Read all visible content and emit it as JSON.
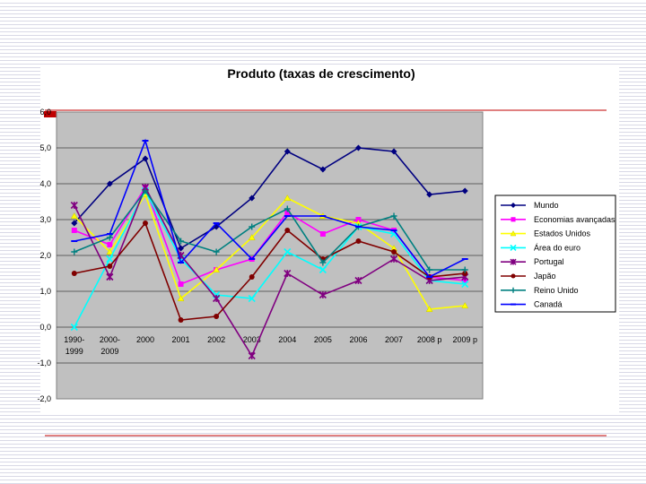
{
  "colors": {
    "plot_background": "#c0c0c0",
    "chart_background": "#ffffff",
    "rule_line": "#c00000",
    "accent_block": "#c00000"
  },
  "chart_data": {
    "type": "line",
    "title": "Produto (taxas de crescimento)",
    "xlabel": "",
    "ylabel": "",
    "categories": [
      "1990-1999",
      "2000-2009",
      "2000",
      "2001",
      "2002",
      "2003",
      "2004",
      "2005",
      "2006",
      "2007",
      "2008p",
      "2009p"
    ],
    "category_label_lines": [
      [
        "1990-",
        "1999"
      ],
      [
        "2000-",
        "2009"
      ],
      [
        "2000"
      ],
      [
        "2001"
      ],
      [
        "2002"
      ],
      [
        "2003"
      ],
      [
        "2004"
      ],
      [
        "2005"
      ],
      [
        "2006"
      ],
      [
        "2007"
      ],
      [
        "2008 p"
      ],
      [
        "2009 p"
      ]
    ],
    "ylim": [
      -2,
      6
    ],
    "y_ticks": [
      "-2,0",
      "-1,0",
      "0,0",
      "1,0",
      "2,0",
      "3,0",
      "4,0",
      "5,0",
      "6,0"
    ],
    "grid": true,
    "legend_position": "right",
    "series": [
      {
        "name": "Mundo",
        "color": "#000080",
        "marker": "diamond",
        "values": [
          2.9,
          4.0,
          4.7,
          2.2,
          2.8,
          3.6,
          4.9,
          4.4,
          5.0,
          4.9,
          3.7,
          3.8
        ]
      },
      {
        "name": "Economias avançadas",
        "color": "#ff00ff",
        "marker": "square",
        "values": [
          2.7,
          2.3,
          3.9,
          1.2,
          1.6,
          1.9,
          3.2,
          2.6,
          3.0,
          2.7,
          1.4,
          1.3
        ]
      },
      {
        "name": "Estados Unidos",
        "color": "#ffff00",
        "marker": "triangle",
        "values": [
          3.1,
          2.1,
          3.7,
          0.8,
          1.6,
          2.5,
          3.6,
          3.1,
          2.9,
          2.2,
          0.5,
          0.6
        ]
      },
      {
        "name": "Área do euro",
        "color": "#00ffff",
        "marker": "x",
        "values": [
          0.0,
          1.9,
          3.8,
          1.9,
          0.9,
          0.8,
          2.1,
          1.6,
          2.8,
          2.6,
          1.3,
          1.2
        ]
      },
      {
        "name": "Portugal",
        "color": "#800080",
        "marker": "star",
        "values": [
          3.4,
          1.4,
          3.9,
          2.0,
          0.8,
          -0.8,
          1.5,
          0.9,
          1.3,
          1.9,
          1.3,
          1.4
        ]
      },
      {
        "name": "Japão",
        "color": "#800000",
        "marker": "circle",
        "values": [
          1.5,
          1.7,
          2.9,
          0.2,
          0.3,
          1.4,
          2.7,
          1.9,
          2.4,
          2.1,
          1.4,
          1.5
        ]
      },
      {
        "name": "Reino Unido",
        "color": "#008080",
        "marker": "plus",
        "values": [
          2.1,
          2.5,
          3.8,
          2.4,
          2.1,
          2.8,
          3.3,
          1.8,
          2.8,
          3.1,
          1.6,
          1.6
        ]
      },
      {
        "name": "Canadá",
        "color": "#0000ff",
        "marker": "dash",
        "values": [
          2.4,
          2.6,
          5.2,
          1.8,
          2.9,
          1.9,
          3.1,
          3.1,
          2.8,
          2.7,
          1.4,
          1.9
        ]
      }
    ]
  }
}
